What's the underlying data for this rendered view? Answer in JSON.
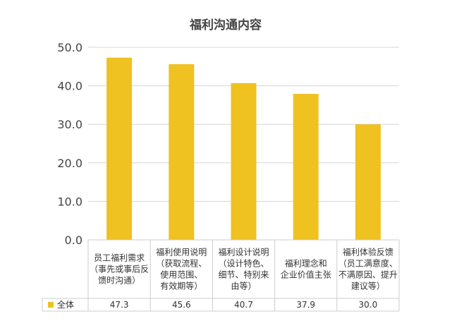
{
  "chart_data": {
    "type": "bar",
    "title": "福利沟通内容",
    "categories": [
      [
        "员工福利需求",
        "（事先或事后反",
        "馈时沟通）"
      ],
      [
        "福利使用说明",
        "（获取流程、",
        "使用范围、",
        "有效期等）"
      ],
      [
        "福利设计说明",
        "（设计特色、",
        "细节、特别来",
        "由等）"
      ],
      [
        "福利理念和",
        "企业价值主张"
      ],
      [
        "福利体验反馈",
        "（员工满意度、",
        "不满原因、提升",
        "建议等）"
      ]
    ],
    "series": [
      {
        "name": "全体",
        "values": [
          47.3,
          45.6,
          40.7,
          37.9,
          30.0
        ]
      }
    ],
    "value_labels": [
      "47.3",
      "45.6",
      "40.7",
      "37.9",
      "30.0"
    ],
    "yticks": [
      "0.0",
      "10.0",
      "20.0",
      "30.0",
      "40.0",
      "50.0"
    ],
    "ylim": [
      0,
      50
    ],
    "bar_color": "#EFC121",
    "grid": true,
    "legend": "bottom-left, in data table"
  }
}
